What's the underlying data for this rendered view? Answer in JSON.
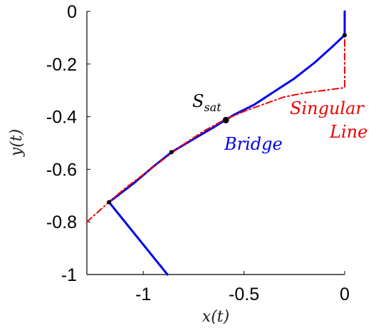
{
  "chart_data": {
    "type": "line",
    "xlabel": "x(t)",
    "ylabel": "y(t)",
    "xlim": [
      -1.28,
      0
    ],
    "ylim": [
      -1,
      0
    ],
    "xticks": [
      {
        "value": -1,
        "label": "-1"
      },
      {
        "value": -0.5,
        "label": "-0.5"
      },
      {
        "value": 0,
        "label": "0"
      }
    ],
    "yticks": [
      {
        "value": 0,
        "label": "0"
      },
      {
        "value": -0.2,
        "label": "-0.2"
      },
      {
        "value": -0.4,
        "label": "-0.4"
      },
      {
        "value": -0.6,
        "label": "-0.6"
      },
      {
        "value": -0.8,
        "label": "-0.8"
      },
      {
        "value": -1,
        "label": "-1"
      }
    ],
    "grid": false,
    "series": [
      {
        "name": "Bridge",
        "color": "#0000ee",
        "style": "solid",
        "points": [
          [
            -0.88,
            -1.0
          ],
          [
            -1.17,
            -0.725
          ],
          [
            -1.05,
            -0.655
          ],
          [
            -0.95,
            -0.59
          ],
          [
            -0.86,
            -0.535
          ],
          [
            -0.75,
            -0.485
          ],
          [
            -0.65,
            -0.44
          ],
          [
            -0.55,
            -0.393
          ],
          [
            -0.45,
            -0.355
          ],
          [
            -0.35,
            -0.305
          ],
          [
            -0.25,
            -0.255
          ],
          [
            -0.15,
            -0.195
          ],
          [
            -0.07,
            -0.14
          ],
          [
            0.0,
            -0.09
          ],
          [
            0.0,
            0.0
          ]
        ]
      },
      {
        "name": "Singular Line",
        "color": "#ee0000",
        "style": "dashdot",
        "points": [
          [
            -1.28,
            -0.8
          ],
          [
            -1.2,
            -0.745
          ],
          [
            -1.1,
            -0.678
          ],
          [
            -1.0,
            -0.62
          ],
          [
            -0.9,
            -0.562
          ],
          [
            -0.8,
            -0.505
          ],
          [
            -0.7,
            -0.455
          ],
          [
            -0.6,
            -0.413
          ],
          [
            -0.5,
            -0.38
          ],
          [
            -0.4,
            -0.352
          ],
          [
            -0.3,
            -0.325
          ],
          [
            -0.2,
            -0.31
          ],
          [
            -0.1,
            -0.3
          ],
          [
            0.0,
            -0.29
          ],
          [
            0.0,
            -0.09
          ]
        ]
      }
    ],
    "markers": [
      {
        "x": -1.17,
        "y": -0.725,
        "label": ""
      },
      {
        "x": -0.86,
        "y": -0.535,
        "label": ""
      },
      {
        "x": -0.59,
        "y": -0.413,
        "label": "S_sat"
      },
      {
        "x": 0.0,
        "y": -0.09,
        "label": ""
      }
    ],
    "annotations": [
      {
        "text": "Bridge",
        "color": "#0000ee"
      },
      {
        "text": "Singular",
        "color": "#ee0000"
      },
      {
        "text": "Line",
        "color": "#ee0000"
      }
    ]
  }
}
